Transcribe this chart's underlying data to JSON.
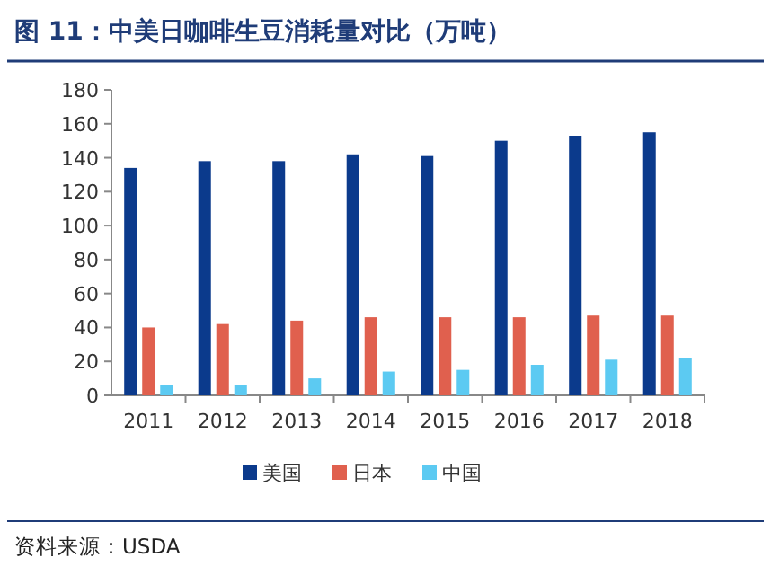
{
  "chart_data": {
    "type": "bar",
    "title": "图 11：中美日咖啡生豆消耗量对比（万吨）",
    "categories": [
      "2011",
      "2012",
      "2013",
      "2014",
      "2015",
      "2016",
      "2017",
      "2018"
    ],
    "series": [
      {
        "name": "美国",
        "color": "#0b3a8c",
        "values": [
          134,
          138,
          138,
          142,
          141,
          150,
          153,
          155
        ]
      },
      {
        "name": "日本",
        "color": "#e0604e",
        "values": [
          40,
          42,
          44,
          46,
          46,
          46,
          47,
          47
        ]
      },
      {
        "name": "中国",
        "color": "#5ccaf2",
        "values": [
          6,
          6,
          10,
          14,
          15,
          18,
          21,
          22
        ]
      }
    ],
    "ylim": [
      0,
      180
    ],
    "yticks": [
      0,
      20,
      40,
      60,
      80,
      100,
      120,
      140,
      160,
      180
    ],
    "legend": "bottom",
    "grid": false,
    "annotations": [
      "资料来源：USDA"
    ]
  }
}
